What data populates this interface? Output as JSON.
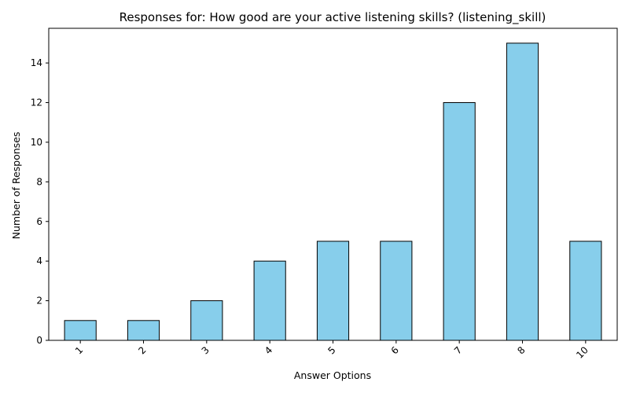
{
  "chart_data": {
    "type": "bar",
    "title": "Responses for: How good are your active listening skills? (listening_skill)",
    "xlabel": "Answer Options",
    "ylabel": "Number of Responses",
    "categories": [
      "1",
      "2",
      "3",
      "4",
      "5",
      "6",
      "7",
      "8",
      "10"
    ],
    "values": [
      1,
      1,
      2,
      4,
      5,
      5,
      12,
      15,
      5
    ],
    "ylim": [
      0,
      15.75
    ],
    "yticks": [
      0,
      2,
      4,
      6,
      8,
      10,
      12,
      14
    ],
    "bar_color": "#87CEEB",
    "edge_color": "#000000",
    "grid": false,
    "legend": false
  }
}
